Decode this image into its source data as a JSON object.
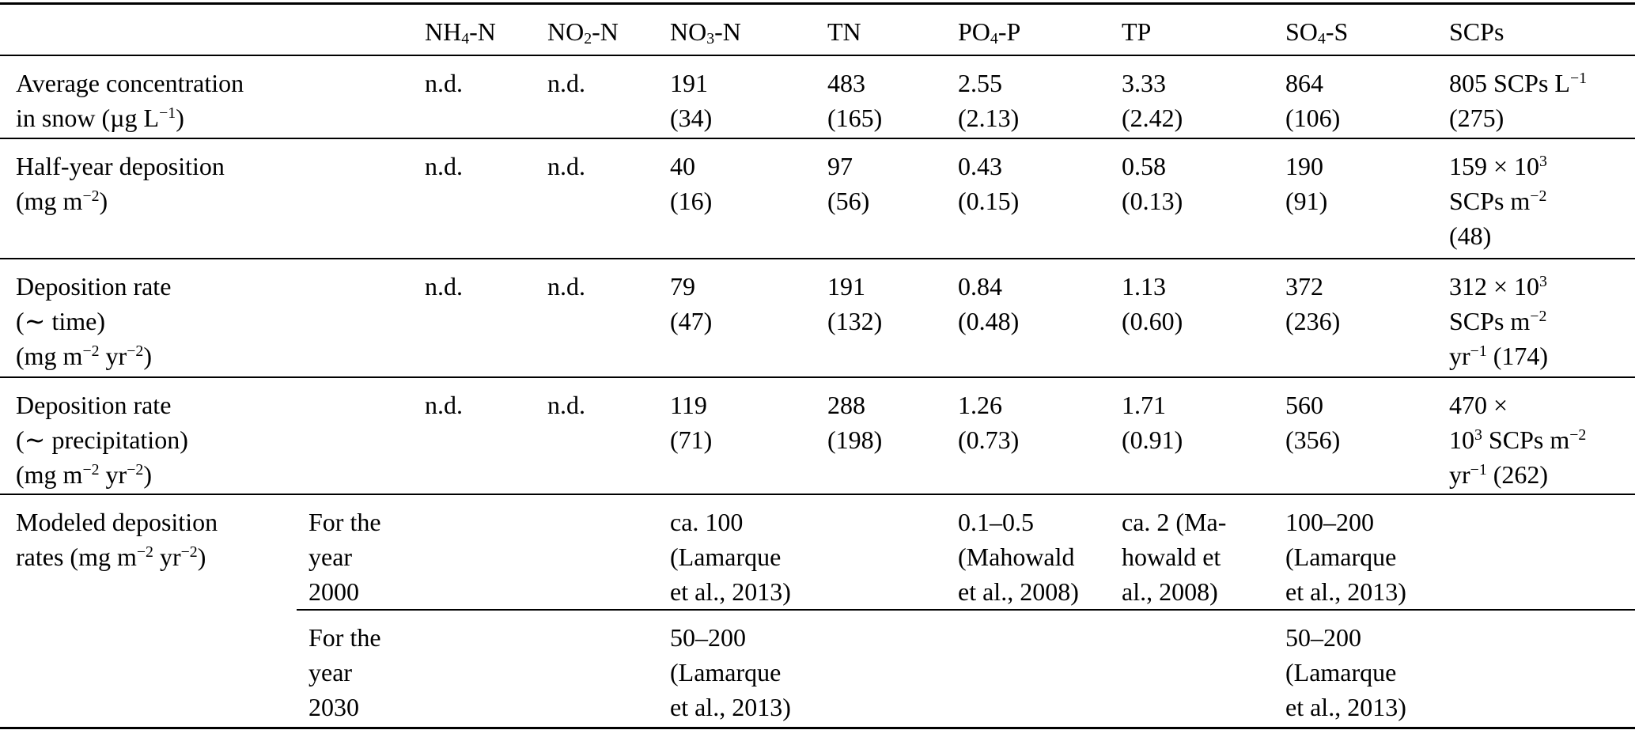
{
  "page": {
    "background_color": "#ffffff",
    "text_color": "#000000",
    "rule_color": "#000000"
  },
  "table": {
    "header": {
      "label": "",
      "sublabel": "",
      "nh4n": "NH_{4}-N",
      "no2n": "NO_{2}-N",
      "no3n": "NO_{3}-N",
      "tn": "TN",
      "po4p": "PO_{4}-P",
      "tp": "TP",
      "so4s": "SO_{4}-S",
      "scps": "SCPs"
    },
    "rows": [
      {
        "label": "Average concentration\nin snow (µg L^{−1})",
        "sublabel": "",
        "nh4n": "n.d.",
        "no2n": "n.d.",
        "no3n": "191\n(34)",
        "tn": "483\n(165)",
        "po4p": "2.55\n(2.13)",
        "tp": "3.33\n(2.42)",
        "so4s": "864\n(106)",
        "scps": "805 SCPs L^{−1}\n(275)"
      },
      {
        "label": "Half-year deposition\n(mg m^{−2})",
        "sublabel": "",
        "nh4n": "n.d.",
        "no2n": "n.d.",
        "no3n": "40\n(16)",
        "tn": "97\n(56)",
        "po4p": "0.43\n(0.15)",
        "tp": "0.58\n(0.13)",
        "so4s": "190\n(91)",
        "scps": "159 × 10^{3}\nSCPs m^{−2}\n(48)"
      },
      {
        "label": "Deposition rate\n(∼ time)\n(mg m^{−2} yr^{−2})",
        "sublabel": "",
        "nh4n": "n.d.",
        "no2n": "n.d.",
        "no3n": "79\n(47)",
        "tn": "191\n(132)",
        "po4p": "0.84\n(0.48)",
        "tp": "1.13\n(0.60)",
        "so4s": "372\n(236)",
        "scps": "312 × 10^{3}\nSCPs m^{−2}\nyr^{−1} (174)"
      },
      {
        "label": "Deposition rate\n(∼ precipitation)\n(mg m^{−2} yr^{−2})",
        "sublabel": "",
        "nh4n": "n.d.",
        "no2n": "n.d.",
        "no3n": "119\n(71)",
        "tn": "288\n(198)",
        "po4p": "1.26\n(0.73)",
        "tp": "1.71\n(0.91)",
        "so4s": "560\n(356)",
        "scps": "470 ×\n10^{3} SCPs m^{−2}\nyr^{−1} (262)"
      },
      {
        "label": "Modeled deposition\nrates (mg m^{−2} yr^{−2})",
        "sublabel": "For the\nyear\n2000",
        "nh4n": "",
        "no2n": "",
        "no3n": "ca. 100\n(Lamarque\net al., 2013)",
        "tn": "",
        "po4p": "0.1–0.5\n(Mahowald\net al., 2008)",
        "tp": "ca. 2 (Ma-\nhowald et\nal., 2008)",
        "so4s": "100–200\n(Lamarque\net al., 2013)",
        "scps": ""
      },
      {
        "label": "",
        "sublabel": "For the\nyear\n2030",
        "nh4n": "",
        "no2n": "",
        "no3n": "50–200\n(Lamarque\net al., 2013)",
        "tn": "",
        "po4p": "",
        "tp": "",
        "so4s": "50–200\n(Lamarque\net al., 2013)",
        "scps": ""
      }
    ]
  }
}
